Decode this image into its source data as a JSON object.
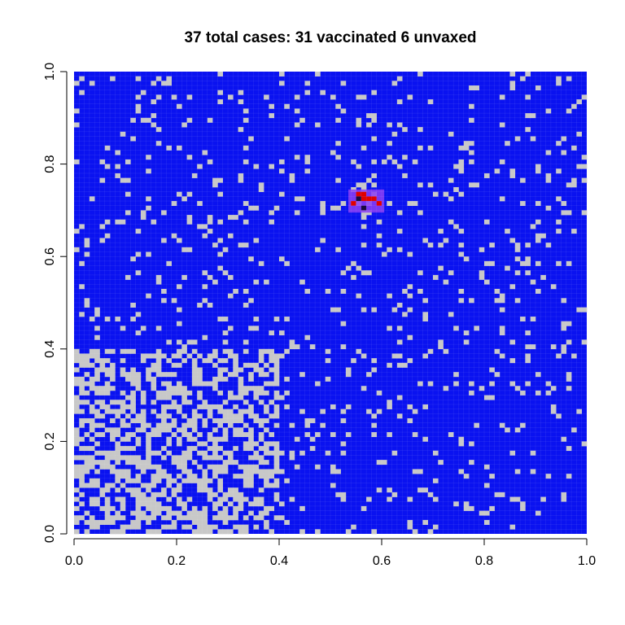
{
  "chart_data": {
    "type": "heatmap",
    "title": "37 total cases: 31 vaccinated 6 unvaxed",
    "xlabel": "",
    "ylabel": "",
    "xlim": [
      0,
      1
    ],
    "ylim": [
      0,
      1
    ],
    "grid_size": 100,
    "x_ticks": [
      "0.0",
      "0.2",
      "0.4",
      "0.6",
      "0.8",
      "1.0"
    ],
    "y_ticks": [
      "0.0",
      "0.2",
      "0.4",
      "0.6",
      "0.8",
      "1.0"
    ],
    "colors": {
      "vaccinated": "#0a12f0",
      "unvaccinated": "#c8c8c8",
      "infected_region": "#8c3ef5",
      "case": "#e00000",
      "dark_case": "#1a0a40"
    },
    "regions": [
      {
        "name": "low-coverage-block",
        "x": [
          0.0,
          0.4
        ],
        "y": [
          0.0,
          0.4
        ],
        "unvaccinated_fraction": 0.5
      },
      {
        "name": "high-coverage-rest",
        "unvaccinated_fraction": 0.08
      }
    ],
    "outbreak_region": {
      "x": [
        0.535,
        0.605
      ],
      "y": [
        0.695,
        0.745
      ]
    },
    "cases_red": [
      [
        0.555,
        0.735
      ],
      [
        0.565,
        0.735
      ],
      [
        0.545,
        0.715
      ],
      [
        0.585,
        0.725
      ],
      [
        0.575,
        0.725
      ],
      [
        0.595,
        0.715
      ],
      [
        0.565,
        0.725
      ]
    ],
    "cases_dark": [
      [
        0.565,
        0.705
      ],
      [
        0.555,
        0.725
      ]
    ]
  }
}
